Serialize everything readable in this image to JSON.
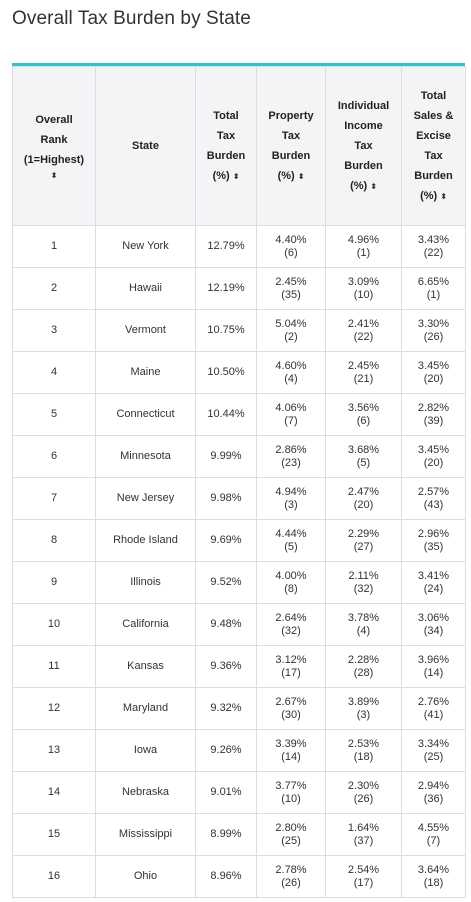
{
  "page": {
    "title": "Overall Tax Burden by State"
  },
  "table": {
    "headers": {
      "rank": [
        "Overall",
        "Rank",
        "(1=Highest)"
      ],
      "state": "State",
      "total": [
        "Total",
        "Tax",
        "Burden",
        "(%)"
      ],
      "property": [
        "Property",
        "Tax",
        "Burden",
        "(%)"
      ],
      "income": [
        "Individual",
        "Income",
        "Tax",
        "Burden",
        "(%)"
      ],
      "sales": [
        "Total",
        "Sales &",
        "Excise",
        "Tax",
        "Burden",
        "(%)"
      ],
      "sort_glyph": "⬍"
    },
    "rows": [
      {
        "rank": "1",
        "state": "New York",
        "total": "12.79%",
        "prop": "4.40%",
        "prop_rank": "(6)",
        "inc": "4.96%",
        "inc_rank": "(1)",
        "sales": "3.43%",
        "sales_rank": "(22)"
      },
      {
        "rank": "2",
        "state": "Hawaii",
        "total": "12.19%",
        "prop": "2.45%",
        "prop_rank": "(35)",
        "inc": "3.09%",
        "inc_rank": "(10)",
        "sales": "6.65%",
        "sales_rank": "(1)"
      },
      {
        "rank": "3",
        "state": "Vermont",
        "total": "10.75%",
        "prop": "5.04%",
        "prop_rank": "(2)",
        "inc": "2.41%",
        "inc_rank": "(22)",
        "sales": "3.30%",
        "sales_rank": "(26)"
      },
      {
        "rank": "4",
        "state": "Maine",
        "total": "10.50%",
        "prop": "4.60%",
        "prop_rank": "(4)",
        "inc": "2.45%",
        "inc_rank": "(21)",
        "sales": "3.45%",
        "sales_rank": "(20)"
      },
      {
        "rank": "5",
        "state": "Connecticut",
        "total": "10.44%",
        "prop": "4.06%",
        "prop_rank": "(7)",
        "inc": "3.56%",
        "inc_rank": "(6)",
        "sales": "2.82%",
        "sales_rank": "(39)"
      },
      {
        "rank": "6",
        "state": "Minnesota",
        "total": "9.99%",
        "prop": "2.86%",
        "prop_rank": "(23)",
        "inc": "3.68%",
        "inc_rank": "(5)",
        "sales": "3.45%",
        "sales_rank": "(20)"
      },
      {
        "rank": "7",
        "state": "New Jersey",
        "total": "9.98%",
        "prop": "4.94%",
        "prop_rank": "(3)",
        "inc": "2.47%",
        "inc_rank": "(20)",
        "sales": "2.57%",
        "sales_rank": "(43)"
      },
      {
        "rank": "8",
        "state": "Rhode Island",
        "total": "9.69%",
        "prop": "4.44%",
        "prop_rank": "(5)",
        "inc": "2.29%",
        "inc_rank": "(27)",
        "sales": "2.96%",
        "sales_rank": "(35)"
      },
      {
        "rank": "9",
        "state": "Illinois",
        "total": "9.52%",
        "prop": "4.00%",
        "prop_rank": "(8)",
        "inc": "2.11%",
        "inc_rank": "(32)",
        "sales": "3.41%",
        "sales_rank": "(24)"
      },
      {
        "rank": "10",
        "state": "California",
        "total": "9.48%",
        "prop": "2.64%",
        "prop_rank": "(32)",
        "inc": "3.78%",
        "inc_rank": "(4)",
        "sales": "3.06%",
        "sales_rank": "(34)"
      },
      {
        "rank": "11",
        "state": "Kansas",
        "total": "9.36%",
        "prop": "3.12%",
        "prop_rank": "(17)",
        "inc": "2.28%",
        "inc_rank": "(28)",
        "sales": "3.96%",
        "sales_rank": "(14)"
      },
      {
        "rank": "12",
        "state": "Maryland",
        "total": "9.32%",
        "prop": "2.67%",
        "prop_rank": "(30)",
        "inc": "3.89%",
        "inc_rank": "(3)",
        "sales": "2.76%",
        "sales_rank": "(41)"
      },
      {
        "rank": "13",
        "state": "Iowa",
        "total": "9.26%",
        "prop": "3.39%",
        "prop_rank": "(14)",
        "inc": "2.53%",
        "inc_rank": "(18)",
        "sales": "3.34%",
        "sales_rank": "(25)"
      },
      {
        "rank": "14",
        "state": "Nebraska",
        "total": "9.01%",
        "prop": "3.77%",
        "prop_rank": "(10)",
        "inc": "2.30%",
        "inc_rank": "(26)",
        "sales": "2.94%",
        "sales_rank": "(36)"
      },
      {
        "rank": "15",
        "state": "Mississippi",
        "total": "8.99%",
        "prop": "2.80%",
        "prop_rank": "(25)",
        "inc": "1.64%",
        "inc_rank": "(37)",
        "sales": "4.55%",
        "sales_rank": "(7)"
      },
      {
        "rank": "16",
        "state": "Ohio",
        "total": "8.96%",
        "prop": "2.78%",
        "prop_rank": "(26)",
        "inc": "2.54%",
        "inc_rank": "(17)",
        "sales": "3.64%",
        "sales_rank": "(18)"
      }
    ]
  }
}
